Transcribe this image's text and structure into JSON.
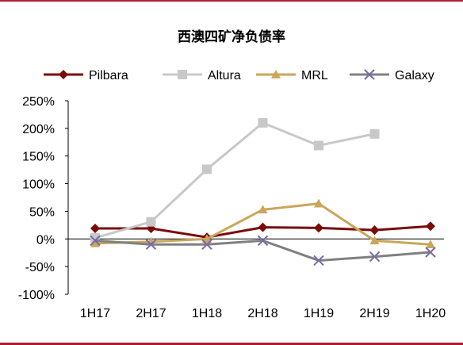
{
  "chart_data": {
    "type": "line",
    "title": "西澳四矿净负债率",
    "categories": [
      "1H17",
      "2H17",
      "1H18",
      "2H18",
      "1H19",
      "2H19",
      "1H20"
    ],
    "y_ticks": [
      "250%",
      "200%",
      "150%",
      "100%",
      "50%",
      "0%",
      "-50%",
      "-100%"
    ],
    "ylim": [
      -100,
      250
    ],
    "legend_position": "top",
    "series": [
      {
        "name": "Pilbara",
        "color": "#7b0a0a",
        "marker": "diamond",
        "values": [
          19,
          19,
          3,
          21,
          20,
          16,
          23
        ]
      },
      {
        "name": "Altura",
        "color": "#c8c8c8",
        "marker": "square",
        "values": [
          2,
          31,
          126,
          210,
          169,
          190,
          null
        ]
      },
      {
        "name": "MRL",
        "color": "#c9a65a",
        "marker": "triangle",
        "values": [
          -8,
          -5,
          0,
          53,
          64,
          -3,
          -10
        ]
      },
      {
        "name": "Galaxy",
        "color": "#808080",
        "marker": "x",
        "values": [
          -3,
          -10,
          -10,
          -3,
          -39,
          -32,
          -24
        ]
      }
    ]
  }
}
